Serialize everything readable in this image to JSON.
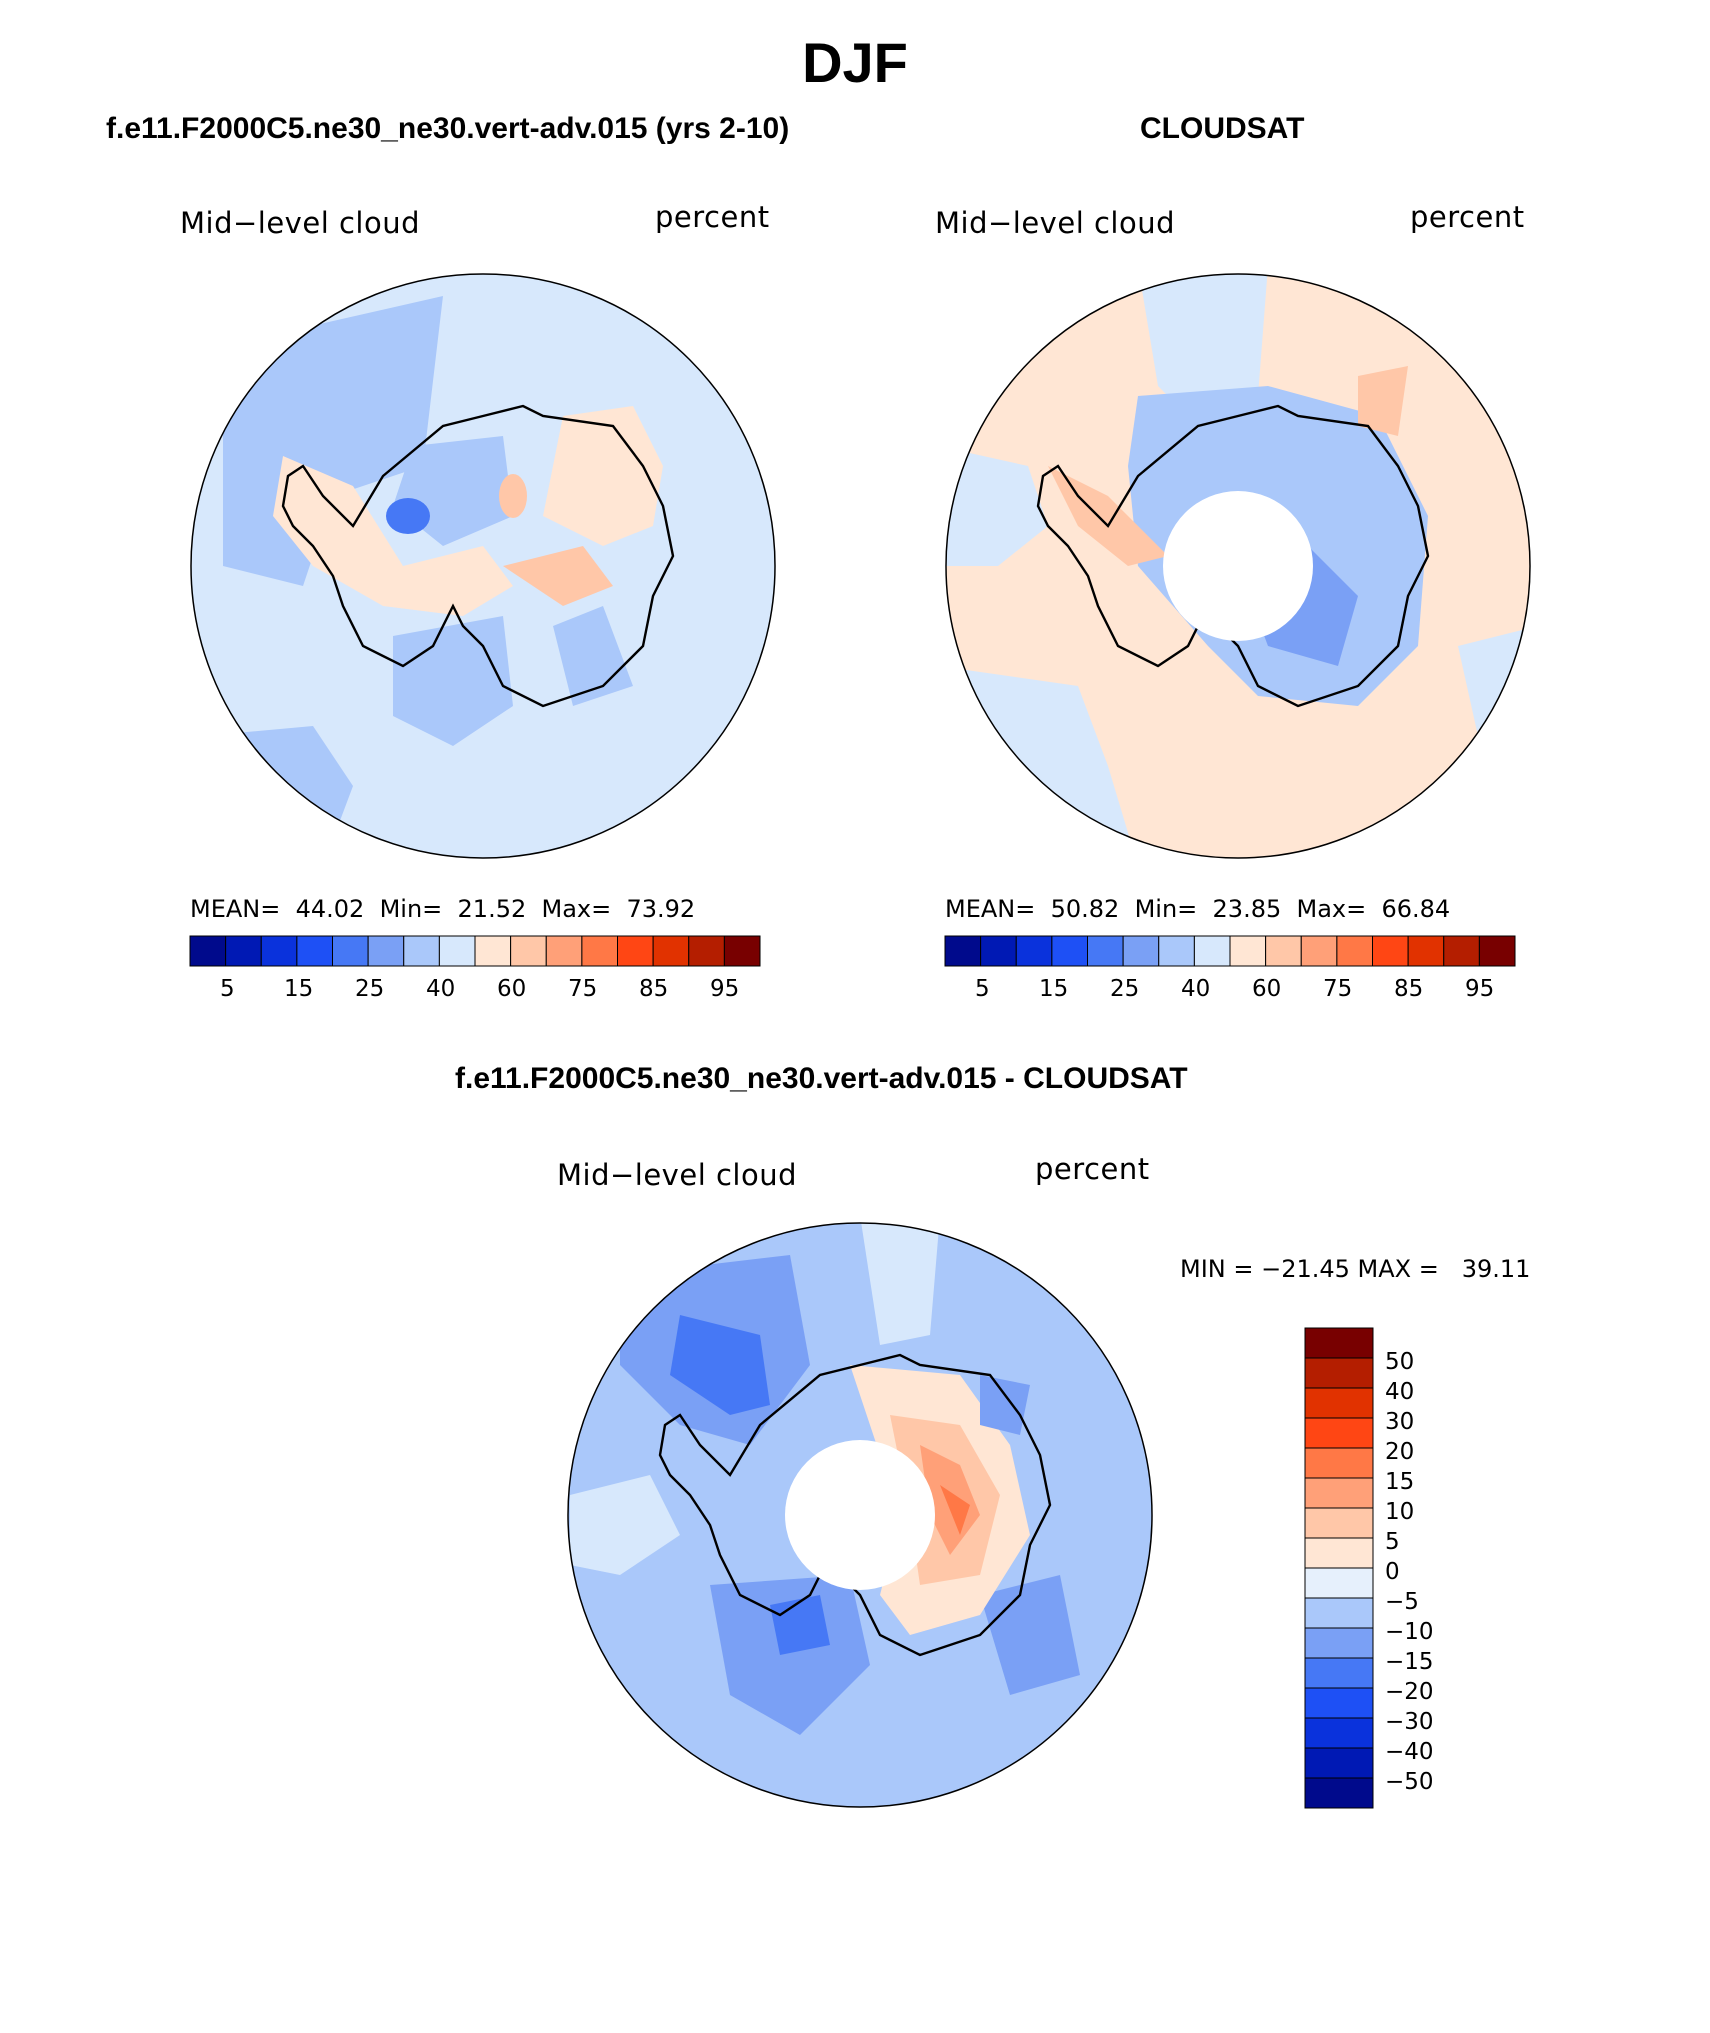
{
  "header": {
    "title": "DJF"
  },
  "colors": {
    "abs_scale": [
      "#000a8c",
      "#0019b4",
      "#0a32dc",
      "#1e50f5",
      "#4678f5",
      "#7aa0f5",
      "#aac8fa",
      "#d7e8fc",
      "#ffe6d4",
      "#ffc7a8",
      "#ffa078",
      "#ff7846",
      "#ff4614",
      "#e13200",
      "#b41e00",
      "#780000"
    ],
    "diff_scale": [
      "#780000",
      "#b41e00",
      "#e13200",
      "#ff4614",
      "#ff7846",
      "#ffa078",
      "#ffc7a8",
      "#ffe6d4",
      "#e6f0fc",
      "#aac8fa",
      "#7aa0f5",
      "#4678f5",
      "#1e50f5",
      "#0a32dc",
      "#0019b4",
      "#000a8c"
    ]
  },
  "panels": {
    "model": {
      "title": "f.e11.F2000C5.ne30_ne30.vert-adv.015 (yrs 2-10)",
      "variable": "Mid−level cloud",
      "units": "percent",
      "stats": "MEAN=  44.02  Min=  21.52  Max=  73.92",
      "colorbar_ticks": [
        "5",
        "15",
        "25",
        "40",
        "60",
        "75",
        "85",
        "95"
      ]
    },
    "obs": {
      "title": "CLOUDSAT",
      "variable": "Mid−level cloud",
      "units": "percent",
      "stats": "MEAN=  50.82  Min=  23.85  Max=  66.84",
      "colorbar_ticks": [
        "5",
        "15",
        "25",
        "40",
        "60",
        "75",
        "85",
        "95"
      ]
    },
    "diff": {
      "title": "f.e11.F2000C5.ne30_ne30.vert-adv.015 - CLOUDSAT",
      "variable": "Mid−level cloud",
      "units": "percent",
      "stats": "MIN = −21.45 MAX =   39.11",
      "colorbar_ticks": [
        "50",
        "40",
        "30",
        "20",
        "15",
        "10",
        "5",
        "0",
        "−5",
        "−10",
        "−15",
        "−20",
        "−30",
        "−40",
        "−50"
      ]
    }
  }
}
